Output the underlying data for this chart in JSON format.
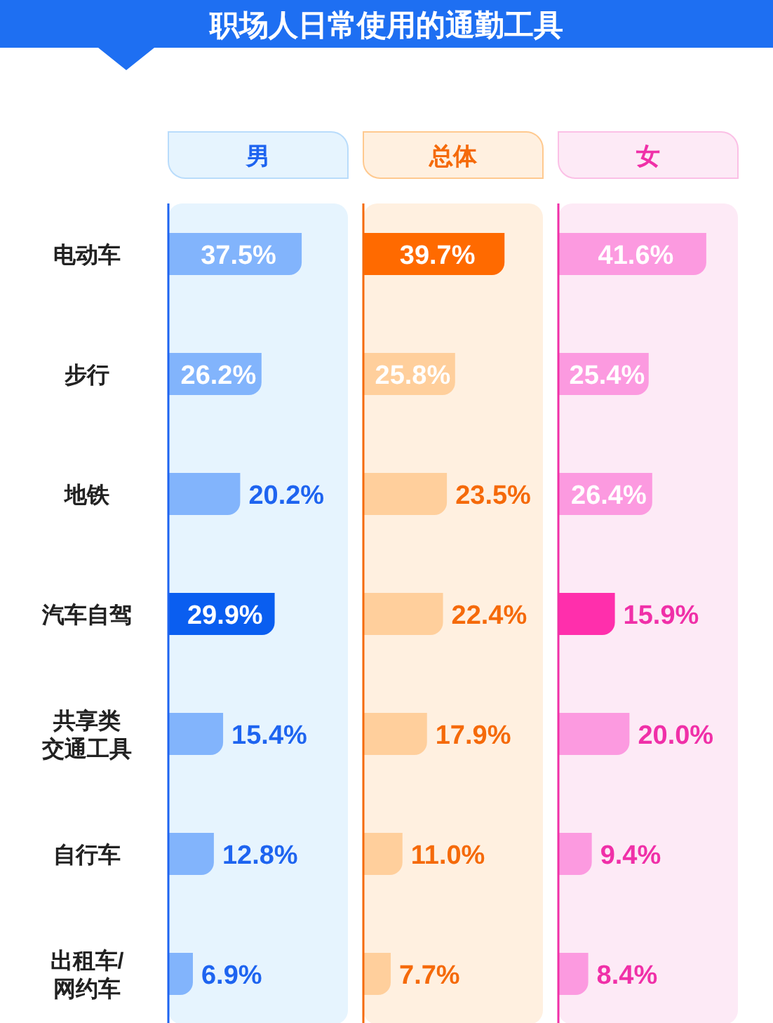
{
  "chart_data": [
    {
      "type": "bar",
      "orientation": "horizontal",
      "title": "职场人日常使用的通勤工具",
      "subtitle": "男",
      "categories": [
        "电动车",
        "步行",
        "地铁",
        "汽车自驾",
        "共享类交通工具",
        "自行车",
        "出租车/网约车"
      ],
      "values": [
        37.5,
        26.2,
        20.2,
        29.9,
        15.4,
        12.8,
        6.9
      ],
      "colors": [
        "#82b4fc",
        "#82b4fc",
        "#82b4fc",
        "#0a5ef0",
        "#82b4fc",
        "#82b4fc",
        "#82b4fc"
      ],
      "value_labels": [
        "37.5%",
        "26.2%",
        "20.2%",
        "29.9%",
        "15.4%",
        "12.8%",
        "6.9%"
      ],
      "bands": [
        {
          "axis": "x",
          "from": 0,
          "to": 50.5,
          "color": "#e6f4fe"
        }
      ],
      "tick_labels": "y"
    },
    {
      "type": "bar",
      "orientation": "horizontal",
      "subtitle": "总体",
      "categories": [
        "电动车",
        "步行",
        "地铁",
        "汽车自驾",
        "共享类交通工具",
        "自行车",
        "出租车/网约车"
      ],
      "values": [
        39.7,
        25.8,
        23.5,
        22.4,
        17.9,
        11.0,
        7.7
      ],
      "colors": [
        "#ff6a00",
        "#ffcf9c",
        "#ffcf9c",
        "#ffcf9c",
        "#ffcf9c",
        "#ffcf9c",
        "#ffcf9c"
      ],
      "value_labels": [
        "39.7%",
        "25.8%",
        "23.5%",
        "22.4%",
        "17.9%",
        "11.0%",
        "7.7%"
      ],
      "bands": [
        {
          "axis": "x",
          "from": 0,
          "to": 50.5,
          "color": "#fff0e0"
        }
      ],
      "tick_labels": false
    },
    {
      "type": "bar",
      "orientation": "horizontal",
      "subtitle": "女",
      "categories": [
        "电动车",
        "步行",
        "地铁",
        "汽车自驾",
        "共享类交通工具",
        "自行车",
        "出租车/网约车"
      ],
      "values": [
        41.6,
        25.4,
        26.4,
        15.9,
        20.0,
        9.4,
        8.4
      ],
      "colors": [
        "#fc9ae0",
        "#fc9ae0",
        "#fc9ae0",
        "#ff2fac",
        "#fc9ae0",
        "#fc9ae0",
        "#fc9ae0"
      ],
      "value_labels": [
        "41.6%",
        "25.4%",
        "26.4%",
        "15.9%",
        "20.0%",
        "9.4%",
        "8.4%"
      ],
      "bands": [
        {
          "axis": "x",
          "from": 0,
          "to": 50.5,
          "color": "#fdeaf6"
        }
      ],
      "tick_labels": false
    }
  ]
}
